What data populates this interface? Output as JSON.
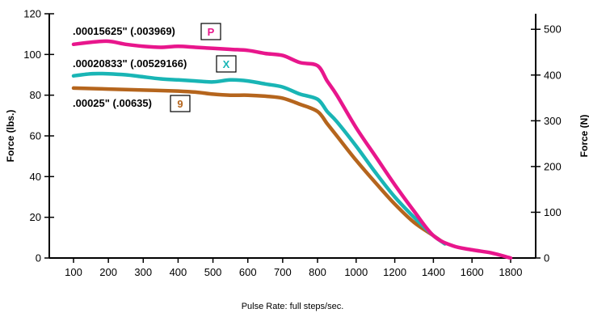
{
  "chart_data": {
    "type": "line",
    "xlabel": "Pulse Rate:  full steps/sec.",
    "ylabel": "Force (lbs.)",
    "ylabel_right": "Force (N)",
    "xlim": [
      50,
      1860
    ],
    "ylim": [
      0,
      120
    ],
    "ylim_right": [
      0,
      534
    ],
    "x_ticks": [
      100,
      200,
      300,
      400,
      500,
      600,
      700,
      800,
      1000,
      1200,
      1400,
      1600,
      1800
    ],
    "y_ticks": [
      0,
      20,
      40,
      60,
      80,
      100,
      120
    ],
    "y_ticks_right": [
      0,
      100,
      200,
      300,
      400,
      500
    ],
    "grid": false,
    "series": [
      {
        "name": ".00015625\" (.003969)",
        "code": "P",
        "color": "#e8168c",
        "x": [
          100,
          150,
          200,
          250,
          300,
          350,
          400,
          450,
          500,
          550,
          600,
          650,
          700,
          750,
          800,
          850,
          900,
          1000,
          1100,
          1200,
          1300,
          1400,
          1500,
          1600,
          1700,
          1800
        ],
        "y": [
          105,
          106,
          106.5,
          105,
          104,
          103.5,
          104,
          103.5,
          103,
          102.5,
          102,
          100.5,
          99.5,
          96,
          94.5,
          87,
          80,
          64,
          50,
          36,
          23,
          11,
          6,
          4,
          2.5,
          0
        ]
      },
      {
        "name": ".00020833\" (.00529166)",
        "code": "X",
        "color": "#19b5b5",
        "x": [
          100,
          150,
          200,
          250,
          300,
          350,
          400,
          450,
          500,
          550,
          600,
          650,
          700,
          750,
          800,
          850,
          900,
          1000,
          1100,
          1200,
          1300,
          1400,
          1460
        ],
        "y": [
          89.5,
          90.5,
          90.5,
          90,
          89,
          88,
          87.5,
          87,
          86.5,
          87.5,
          87,
          85.5,
          84,
          80.5,
          78,
          72,
          67,
          55,
          42,
          30,
          20,
          11,
          7
        ]
      },
      {
        "name": ".00025\" (.00635)",
        "code": "9",
        "color": "#b5651d",
        "x": [
          100,
          200,
          300,
          400,
          450,
          500,
          550,
          600,
          650,
          700,
          750,
          800,
          850,
          900,
          1000,
          1100,
          1200,
          1300,
          1400,
          1460
        ],
        "y": [
          83.5,
          83,
          82.5,
          82,
          81.5,
          80.5,
          80,
          80,
          79.5,
          78.5,
          75.5,
          72,
          66,
          60,
          48,
          37,
          26.5,
          17.5,
          11,
          7
        ]
      }
    ]
  }
}
